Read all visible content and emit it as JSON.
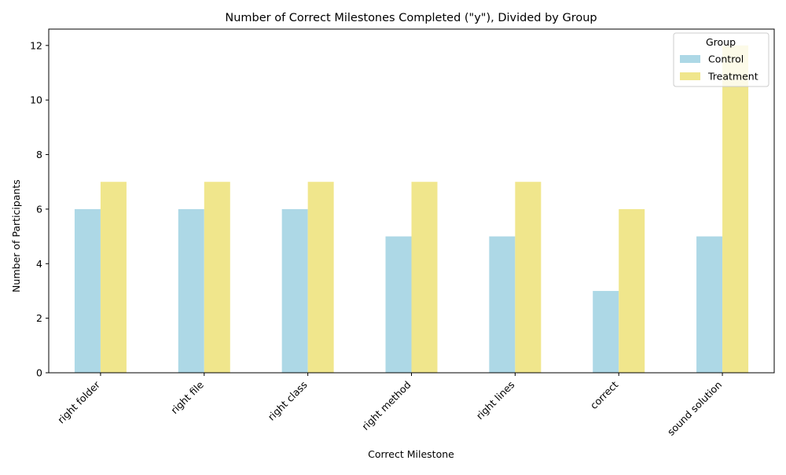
{
  "chart_data": {
    "type": "bar",
    "title": "Number of Correct Milestones Completed (\"y\"), Divided by Group",
    "xlabel": "Correct Milestone",
    "ylabel": "Number of Participants",
    "categories": [
      "right folder",
      "right file",
      "right class",
      "right method",
      "right lines",
      "correct",
      "sound solution"
    ],
    "series": [
      {
        "name": "Control",
        "color": "#add8e6",
        "values": [
          6,
          6,
          6,
          5,
          5,
          3,
          5
        ]
      },
      {
        "name": "Treatment",
        "color": "#f0e68c",
        "values": [
          7,
          7,
          7,
          7,
          7,
          6,
          12
        ]
      }
    ],
    "ylim": [
      0,
      12.6
    ],
    "yticks": [
      0,
      2,
      4,
      6,
      8,
      10,
      12
    ],
    "grid": false,
    "legend": {
      "title": "Group",
      "placement": "top-right"
    }
  }
}
